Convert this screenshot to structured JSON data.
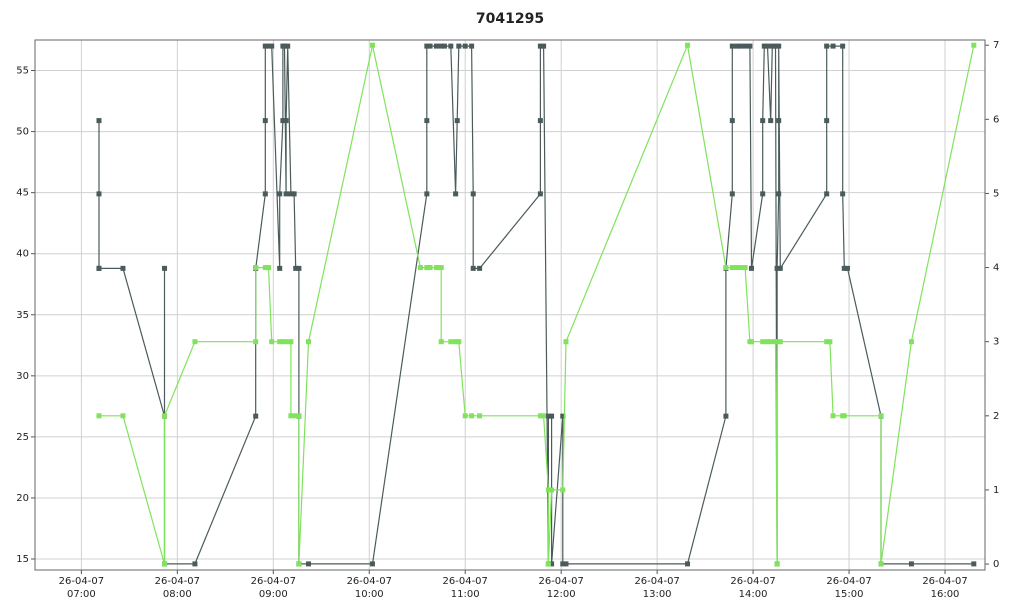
{
  "chart_data": {
    "type": "line",
    "title": "7041295",
    "xlim": [
      "06:31",
      "16:25"
    ],
    "xticks": [
      {
        "value": "07:00",
        "label": [
          "26-04-07",
          "07:00"
        ]
      },
      {
        "value": "08:00",
        "label": [
          "26-04-07",
          "08:00"
        ]
      },
      {
        "value": "09:00",
        "label": [
          "26-04-07",
          "09:00"
        ]
      },
      {
        "value": "10:00",
        "label": [
          "26-04-07",
          "10:00"
        ]
      },
      {
        "value": "11:00",
        "label": [
          "26-04-07",
          "11:00"
        ]
      },
      {
        "value": "12:00",
        "label": [
          "26-04-07",
          "12:00"
        ]
      },
      {
        "value": "13:00",
        "label": [
          "26-04-07",
          "13:00"
        ]
      },
      {
        "value": "14:00",
        "label": [
          "26-04-07",
          "14:00"
        ]
      },
      {
        "value": "15:00",
        "label": [
          "26-04-07",
          "15:00"
        ]
      },
      {
        "value": "16:00",
        "label": [
          "26-04-07",
          "16:00"
        ]
      }
    ],
    "ylim": [
      14.1,
      57.5
    ],
    "yticks": [
      15,
      20,
      25,
      30,
      35,
      40,
      45,
      50,
      55
    ],
    "y2lim": [
      -0.08,
      7.07
    ],
    "y2ticks": [
      0,
      1,
      2,
      3,
      4,
      5,
      6,
      7
    ],
    "grid": true,
    "series": [
      {
        "color": "#4b5b5b",
        "axis": "y",
        "x": [
          "07:11",
          "07:11",
          "07:11",
          "07:11",
          "07:26",
          "07:52",
          "07:52",
          "07:52",
          "08:11",
          "08:49",
          "08:49",
          "08:55",
          "08:55",
          "08:55",
          "08:57",
          "08:59",
          "09:04",
          "09:04",
          "09:06",
          "09:06",
          "09:07",
          "09:08",
          "09:08",
          "09:09",
          "09:11",
          "09:13",
          "09:14",
          "09:16",
          "09:16",
          "09:16",
          "09:22",
          "10:02",
          "10:36",
          "10:36",
          "10:36",
          "10:38",
          "10:42",
          "10:45",
          "10:47",
          "10:51",
          "10:54",
          "10:55",
          "10:56",
          "11:00",
          "11:04",
          "11:05",
          "11:05",
          "11:09",
          "11:47",
          "11:47",
          "11:47",
          "11:49",
          "11:52",
          "11:52",
          "11:54",
          "11:54",
          "12:01",
          "12:01",
          "12:03",
          "13:19",
          "13:43",
          "13:43",
          "13:47",
          "13:47",
          "13:47",
          "13:50",
          "13:52",
          "13:55",
          "13:58",
          "13:59",
          "14:06",
          "14:06",
          "14:07",
          "14:09",
          "14:11",
          "14:12",
          "14:14",
          "14:15",
          "14:15",
          "14:16",
          "14:16",
          "14:16",
          "14:17",
          "14:46",
          "14:46",
          "14:46",
          "14:50",
          "14:56",
          "14:56",
          "14:57",
          "14:59",
          "15:20",
          "15:20",
          "15:39",
          "16:18"
        ],
        "values": [
          38.8,
          44.9,
          50.9,
          38.8,
          38.8,
          26.7,
          38.8,
          14.6,
          14.6,
          26.7,
          38.8,
          44.9,
          50.9,
          57,
          57,
          57,
          38.8,
          44.9,
          50.9,
          57,
          57,
          44.9,
          50.9,
          57,
          44.9,
          44.9,
          38.8,
          38.8,
          26.7,
          14.6,
          14.6,
          14.6,
          44.9,
          50.9,
          57,
          57,
          57,
          57,
          57,
          57,
          44.9,
          50.9,
          57,
          57,
          57,
          44.9,
          38.8,
          38.8,
          44.9,
          50.9,
          57,
          57,
          14.6,
          26.7,
          26.7,
          14.6,
          26.7,
          14.6,
          14.6,
          14.6,
          26.7,
          38.8,
          44.9,
          50.9,
          57,
          57,
          57,
          57,
          57,
          38.8,
          44.9,
          50.9,
          57,
          57,
          50.9,
          57,
          57,
          14.6,
          38.8,
          44.9,
          50.9,
          57,
          38.8,
          44.9,
          50.9,
          57,
          57,
          57,
          44.9,
          38.8,
          38.8,
          26.7,
          14.6,
          14.6,
          14.6
        ]
      },
      {
        "color": "#7fe35c",
        "axis": "y2",
        "x": [
          "07:11",
          "07:26",
          "07:52",
          "07:52",
          "08:11",
          "08:49",
          "08:49",
          "08:55",
          "08:57",
          "08:59",
          "09:04",
          "09:06",
          "09:08",
          "09:11",
          "09:11",
          "09:13",
          "09:16",
          "09:16",
          "09:22",
          "10:02",
          "10:32",
          "10:36",
          "10:38",
          "10:42",
          "10:45",
          "10:45",
          "10:51",
          "10:54",
          "10:56",
          "11:00",
          "11:04",
          "11:09",
          "11:47",
          "11:49",
          "11:52",
          "11:52",
          "11:54",
          "12:01",
          "12:03",
          "13:19",
          "13:43",
          "13:47",
          "13:50",
          "13:52",
          "13:55",
          "13:58",
          "13:59",
          "14:06",
          "14:09",
          "14:11",
          "14:14",
          "14:15",
          "14:15",
          "14:17",
          "14:46",
          "14:48",
          "14:50",
          "14:56",
          "14:57",
          "15:20",
          "15:20",
          "15:39",
          "16:18"
        ],
        "values": [
          2,
          2,
          0,
          2,
          3,
          3,
          4,
          4,
          4,
          3,
          3,
          3,
          3,
          3,
          2,
          2,
          2,
          0,
          3,
          7,
          4,
          4,
          4,
          4,
          4,
          3,
          3,
          3,
          3,
          2,
          2,
          2,
          2,
          2,
          1,
          0,
          1,
          1,
          3,
          7,
          4,
          4,
          4,
          4,
          4,
          3,
          3,
          3,
          3,
          3,
          3,
          0,
          3,
          3,
          3,
          3,
          2,
          2,
          2,
          2,
          0,
          3,
          7
        ]
      }
    ]
  }
}
